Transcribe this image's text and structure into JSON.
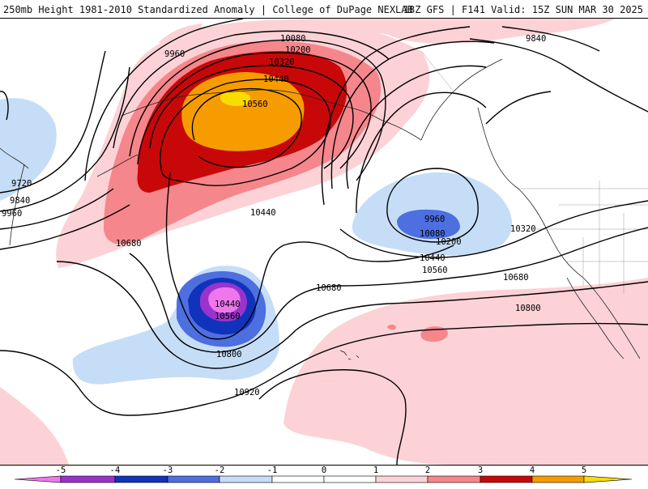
{
  "header": {
    "title": "250mb Height 1981-2010 Standardized Anomaly | College of DuPage NEXLAB",
    "run_info": "18Z GFS | F141 Valid: 15Z SUN MAR 30 2025"
  },
  "colors": {
    "m5": "#ee77ee",
    "m4": "#9933cc",
    "m3": "#1133bb",
    "m2": "#4d6fe0",
    "m1": "#c6ddf7",
    "p1": "#fcd2d6",
    "p2": "#f5868b",
    "p3": "#c80808",
    "p4": "#f79c00",
    "p5": "#fbdc00"
  },
  "contour_labels": [
    {
      "id": "c10080-nw",
      "text": "10080"
    },
    {
      "id": "c10200-nw",
      "text": "10200"
    },
    {
      "id": "c10320-nw",
      "text": "10320"
    },
    {
      "id": "c10440-nw",
      "text": "10440"
    },
    {
      "id": "c10560-nw",
      "text": "10560"
    },
    {
      "id": "c9960-nw",
      "text": "9960"
    },
    {
      "id": "c9840-ne",
      "text": "9840"
    },
    {
      "id": "c9720-w",
      "text": "9720"
    },
    {
      "id": "c9840-w",
      "text": "9840"
    },
    {
      "id": "c9960-w",
      "text": "9960"
    },
    {
      "id": "c10440-mid",
      "text": "10440"
    },
    {
      "id": "c10680-w",
      "text": "10680"
    },
    {
      "id": "c9960-e",
      "text": "9960"
    },
    {
      "id": "c10080-e",
      "text": "10080"
    },
    {
      "id": "c10200-e",
      "text": "10200"
    },
    {
      "id": "c10320-e",
      "text": "10320"
    },
    {
      "id": "c10440-e",
      "text": "10440"
    },
    {
      "id": "c10560-e",
      "text": "10560"
    },
    {
      "id": "c10680-e",
      "text": "10680"
    },
    {
      "id": "c10680-mid",
      "text": "10680"
    },
    {
      "id": "c10800-e",
      "text": "10800"
    },
    {
      "id": "c10440-low",
      "text": "10440"
    },
    {
      "id": "c10560-low",
      "text": "10560"
    },
    {
      "id": "c10800-low",
      "text": "10800"
    },
    {
      "id": "c10920",
      "text": "10920"
    }
  ],
  "colorbar": {
    "labels": [
      "-5",
      "-4",
      "-3",
      "-2",
      "-1",
      "0",
      "1",
      "2",
      "3",
      "4",
      "5"
    ]
  }
}
